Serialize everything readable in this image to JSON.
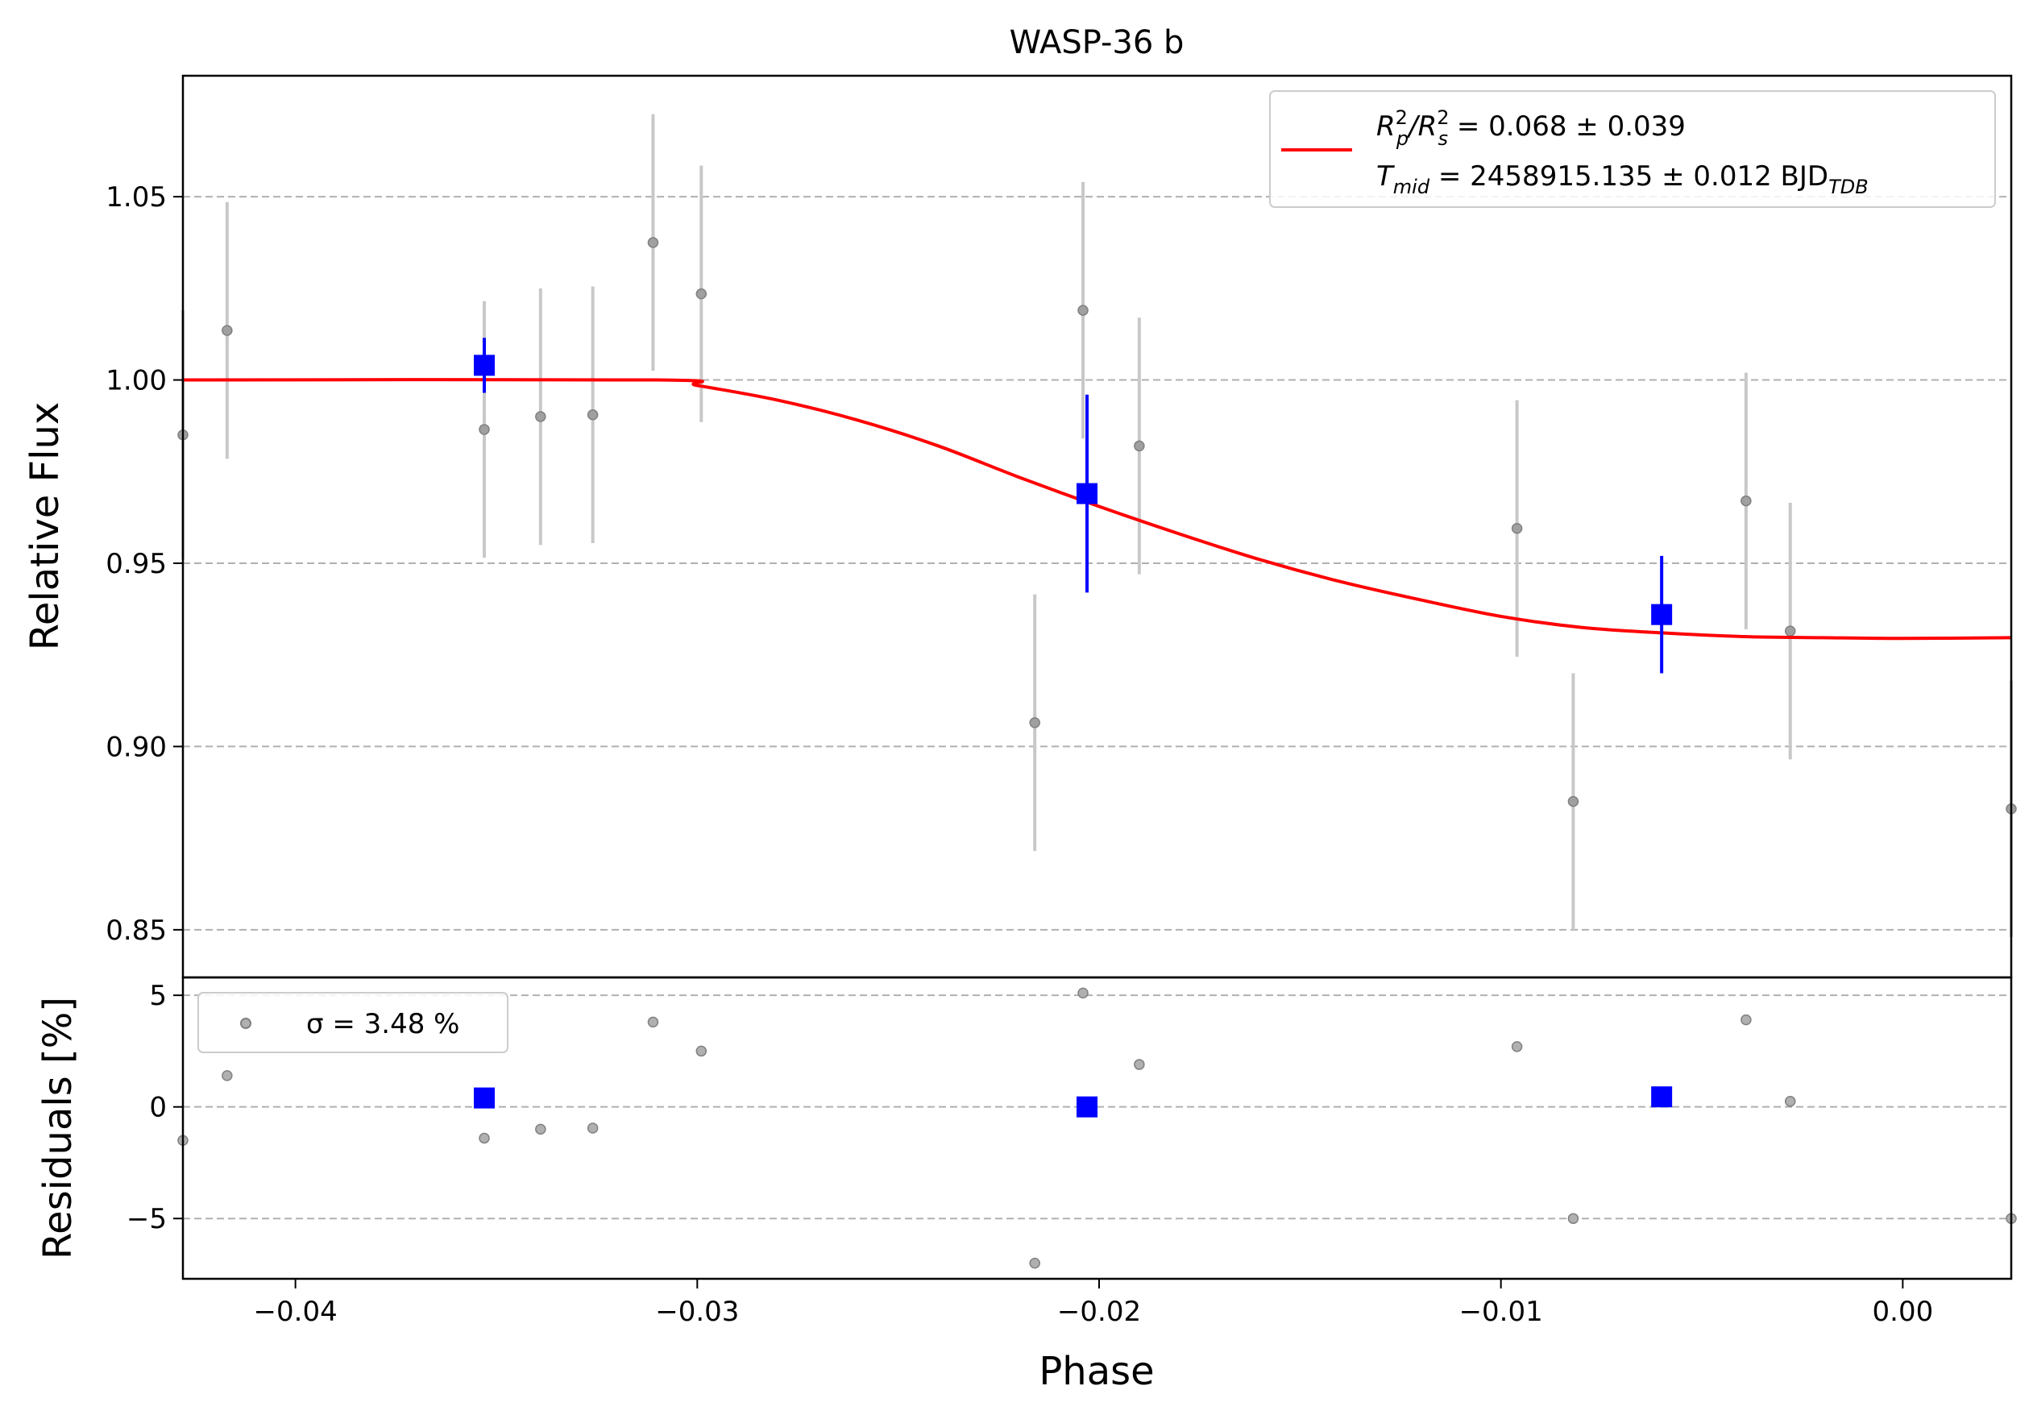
{
  "chart_data": {
    "type": "scatter",
    "title": "WASP-36 b",
    "xlabel": "Phase",
    "x_ticks": [
      -0.04,
      -0.03,
      -0.02,
      -0.01,
      0.0
    ],
    "x_tick_labels": [
      "−0.04",
      "−0.03",
      "−0.02",
      "−0.01",
      "0.00"
    ],
    "xlim": [
      -0.0428,
      0.0027
    ],
    "grid": "horizontal dashed",
    "colors": {
      "raw_points": "#808080",
      "raw_errorbars": "#c8c8c8",
      "binned": "#0000ff",
      "model": "#ff0000",
      "grid": "#b0b0b0"
    },
    "top_panel": {
      "ylabel": "Relative Flux",
      "ylim": [
        0.837,
        1.083
      ],
      "y_ticks": [
        0.85,
        0.9,
        0.95,
        1.0,
        1.05
      ],
      "y_tick_labels": [
        "0.85",
        "0.90",
        "0.95",
        "1.00",
        "1.05"
      ],
      "legend": {
        "placement": "top-right",
        "series_color": "#ff0000",
        "line1": {
          "prefix": "R",
          "sub1": "p",
          "mid": "/R",
          "sub2": "s",
          "value": " = 0.068 ± 0.039"
        },
        "line2": {
          "prefix": "T",
          "sub1": "mid",
          "value": " = 2458915.135 ± 0.012 BJD",
          "sub2": "TDB"
        }
      },
      "raw_points": [
        {
          "x": -0.0428,
          "y": 0.985,
          "err": 0.034
        },
        {
          "x": -0.0417,
          "y": 1.0135,
          "err": 0.035
        },
        {
          "x": -0.0353,
          "y": 0.9865,
          "err": 0.035
        },
        {
          "x": -0.0339,
          "y": 0.99,
          "err": 0.035
        },
        {
          "x": -0.0326,
          "y": 0.9905,
          "err": 0.035
        },
        {
          "x": -0.0311,
          "y": 1.0375,
          "err": 0.035
        },
        {
          "x": -0.0299,
          "y": 1.0235,
          "err": 0.035
        },
        {
          "x": -0.0216,
          "y": 0.9065,
          "err": 0.035
        },
        {
          "x": -0.0204,
          "y": 1.019,
          "err": 0.035
        },
        {
          "x": -0.019,
          "y": 0.982,
          "err": 0.035
        },
        {
          "x": -0.0096,
          "y": 0.9595,
          "err": 0.035
        },
        {
          "x": -0.0082,
          "y": 0.885,
          "err": 0.035
        },
        {
          "x": -0.0039,
          "y": 0.967,
          "err": 0.035
        },
        {
          "x": -0.0028,
          "y": 0.9315,
          "err": 0.035
        },
        {
          "x": 0.0027,
          "y": 0.883,
          "err": 0.035
        }
      ],
      "binned_points": [
        {
          "x": -0.0353,
          "y": 1.004,
          "err": 0.0075
        },
        {
          "x": -0.0203,
          "y": 0.969,
          "err": 0.027
        },
        {
          "x": -0.006,
          "y": 0.936,
          "err": 0.016
        }
      ],
      "model": {
        "x": [
          -0.0428,
          -0.031,
          -0.03,
          -0.028,
          -0.026,
          -0.024,
          -0.022,
          -0.02,
          -0.018,
          -0.016,
          -0.014,
          -0.012,
          -0.01,
          -0.008,
          -0.006,
          -0.004,
          -0.002,
          0.0,
          0.0027
        ],
        "y": [
          1.0,
          1.0,
          0.9985,
          0.9945,
          0.989,
          0.982,
          0.9735,
          0.9655,
          0.958,
          0.951,
          0.945,
          0.94,
          0.9355,
          0.9325,
          0.931,
          0.93,
          0.9297,
          0.9295,
          0.9297
        ]
      }
    },
    "bottom_panel": {
      "ylabel": "Residuals [%]",
      "ylim": [
        -7.7,
        5.8
      ],
      "y_ticks": [
        -5,
        0,
        5
      ],
      "y_tick_labels": [
        "−5",
        "0",
        "5"
      ],
      "legend": {
        "placement": "top-left",
        "label": "σ = 3.48 %"
      },
      "raw_points": [
        {
          "x": -0.0428,
          "y": -1.5
        },
        {
          "x": -0.0417,
          "y": 1.4
        },
        {
          "x": -0.0353,
          "y": -1.4
        },
        {
          "x": -0.0339,
          "y": -1.0
        },
        {
          "x": -0.0326,
          "y": -0.95
        },
        {
          "x": -0.0311,
          "y": 3.8
        },
        {
          "x": -0.0299,
          "y": 2.5
        },
        {
          "x": -0.0216,
          "y": -7.0
        },
        {
          "x": -0.0204,
          "y": 5.1
        },
        {
          "x": -0.019,
          "y": 1.9
        },
        {
          "x": -0.0096,
          "y": 2.7
        },
        {
          "x": -0.0082,
          "y": -5.0
        },
        {
          "x": -0.0039,
          "y": 3.9
        },
        {
          "x": -0.0028,
          "y": 0.25
        },
        {
          "x": 0.0027,
          "y": -5.0
        }
      ],
      "binned_points": [
        {
          "x": -0.0353,
          "y": 0.4
        },
        {
          "x": -0.0203,
          "y": 0.0
        },
        {
          "x": -0.006,
          "y": 0.45
        }
      ]
    }
  }
}
